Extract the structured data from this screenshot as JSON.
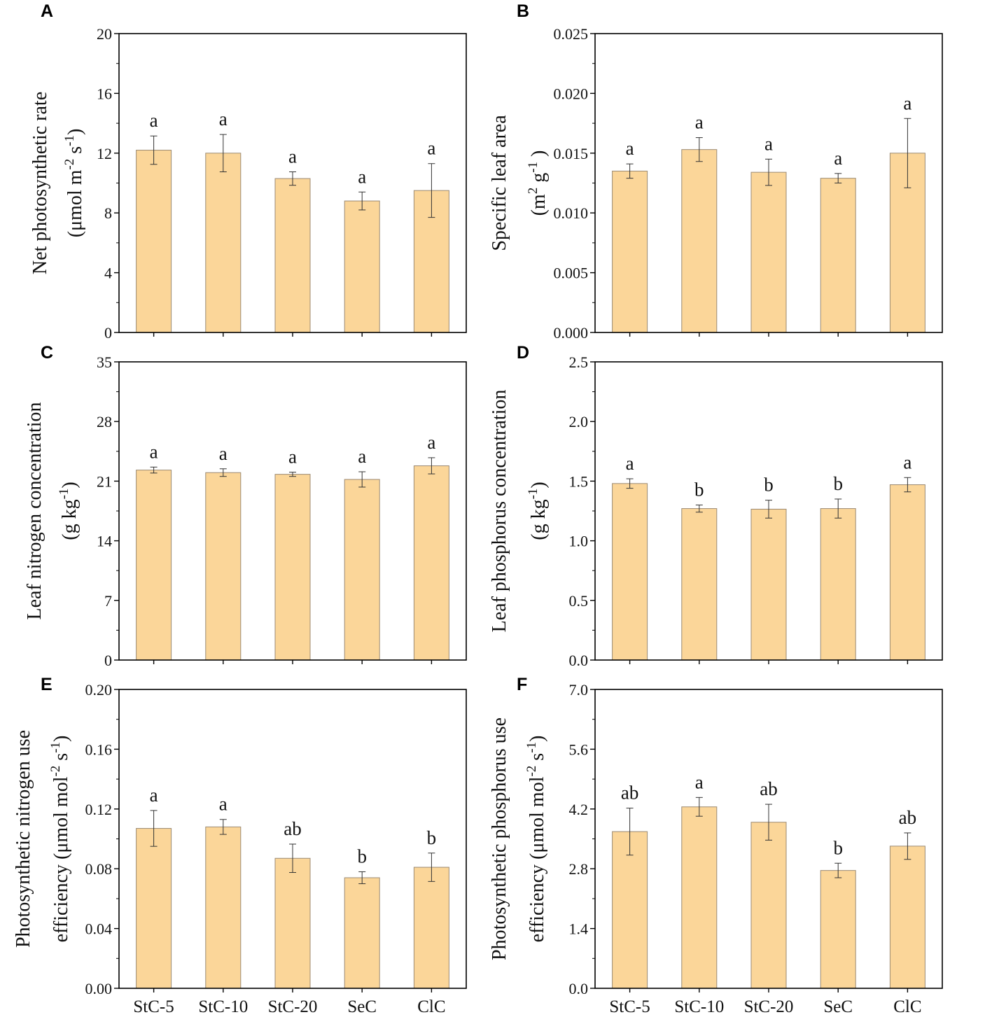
{
  "figure": {
    "bar_color": "#fbd699",
    "bar_edge_color": "#9b8a73",
    "axis_color": "#000000"
  },
  "chart_data": [
    {
      "id": "A",
      "panel_label": "A",
      "type": "bar",
      "categories": [
        "StC-5",
        "StC-10",
        "StC-20",
        "SeC",
        "ClC"
      ],
      "values": [
        12.2,
        12.0,
        10.3,
        8.8,
        9.5
      ],
      "errors": [
        0.95,
        1.25,
        0.45,
        0.6,
        1.8
      ],
      "letters": [
        "a",
        "a",
        "a",
        "a",
        "a"
      ],
      "ylabel_lines": [
        "Net photosynthetic rate",
        "(μmol m-2 s-1)"
      ],
      "ylabel_line2": {
        "pre": "(μmol m",
        "sup1": "-2",
        "mid": " s",
        "sup2": "-1",
        "post": ")"
      },
      "ylim": [
        0,
        20
      ],
      "yticks": [
        0,
        4,
        8,
        12,
        16,
        20
      ],
      "ytick_labels": [
        "0",
        "4",
        "8",
        "12",
        "16",
        "20"
      ],
      "show_xlabels": false
    },
    {
      "id": "B",
      "panel_label": "B",
      "type": "bar",
      "categories": [
        "StC-5",
        "StC-10",
        "StC-20",
        "SeC",
        "ClC"
      ],
      "values": [
        0.0135,
        0.0153,
        0.0134,
        0.0129,
        0.015
      ],
      "errors": [
        0.0006,
        0.001,
        0.0011,
        0.0004,
        0.0029
      ],
      "letters": [
        "a",
        "a",
        "a",
        "a",
        "a"
      ],
      "ylabel_lines": [
        "Specific leaf area",
        "(m2 g-1 )"
      ],
      "ylabel_line2": {
        "pre": "(m",
        "sup1": "2",
        "mid": " g",
        "sup2": "-1",
        "post": " )"
      },
      "ylim": [
        0,
        0.025
      ],
      "yticks": [
        0,
        0.005,
        0.01,
        0.015,
        0.02,
        0.025
      ],
      "ytick_labels": [
        "0.000",
        "0.005",
        "0.010",
        "0.015",
        "0.020",
        "0.025"
      ],
      "show_xlabels": false
    },
    {
      "id": "C",
      "panel_label": "C",
      "type": "bar",
      "categories": [
        "StC-5",
        "StC-10",
        "StC-20",
        "SeC",
        "ClC"
      ],
      "values": [
        22.3,
        22.0,
        21.8,
        21.2,
        22.8
      ],
      "errors": [
        0.35,
        0.45,
        0.25,
        0.9,
        0.95
      ],
      "letters": [
        "a",
        "a",
        "a",
        "a",
        "a"
      ],
      "ylabel_lines": [
        "Leaf nitrogen concentration",
        "(g kg-1)"
      ],
      "ylabel_line2": {
        "pre": "(g kg",
        "sup1": "-1",
        "mid": "",
        "sup2": "",
        "post": ")"
      },
      "ylim": [
        0,
        35
      ],
      "yticks": [
        0,
        7,
        14,
        21,
        28,
        35
      ],
      "ytick_labels": [
        "0",
        "7",
        "14",
        "21",
        "28",
        "35"
      ],
      "show_xlabels": false
    },
    {
      "id": "D",
      "panel_label": "D",
      "type": "bar",
      "categories": [
        "StC-5",
        "StC-10",
        "StC-20",
        "SeC",
        "ClC"
      ],
      "values": [
        1.48,
        1.27,
        1.265,
        1.27,
        1.47
      ],
      "errors": [
        0.04,
        0.03,
        0.075,
        0.08,
        0.06
      ],
      "letters": [
        "a",
        "b",
        "b",
        "b",
        "a"
      ],
      "ylabel_lines": [
        "Leaf phosphorus concentration",
        "(g kg-1)"
      ],
      "ylabel_line2": {
        "pre": "(g kg",
        "sup1": "-1",
        "mid": "",
        "sup2": "",
        "post": ")"
      },
      "ylim": [
        0,
        2.5
      ],
      "yticks": [
        0,
        0.5,
        1.0,
        1.5,
        2.0,
        2.5
      ],
      "ytick_labels": [
        "0.0",
        "0.5",
        "1.0",
        "1.5",
        "2.0",
        "2.5"
      ],
      "show_xlabels": false
    },
    {
      "id": "E",
      "panel_label": "E",
      "type": "bar",
      "categories": [
        "StC-5",
        "StC-10",
        "StC-20",
        "SeC",
        "ClC"
      ],
      "values": [
        0.107,
        0.108,
        0.087,
        0.074,
        0.081
      ],
      "errors": [
        0.012,
        0.005,
        0.0095,
        0.004,
        0.0095
      ],
      "letters": [
        "a",
        "a",
        "ab",
        "b",
        "b"
      ],
      "ylabel_lines": [
        "Photosynthetic nitrogen use",
        "efficiency (μmol mol-2 s-1)"
      ],
      "ylabel_line2": {
        "pre": "efficiency (μmol mol",
        "sup1": "-2",
        "mid": " s",
        "sup2": "-1",
        "post": ")"
      },
      "ylim": [
        0,
        0.2
      ],
      "yticks": [
        0,
        0.04,
        0.08,
        0.12,
        0.16,
        0.2
      ],
      "ytick_labels": [
        "0.00",
        "0.04",
        "0.08",
        "0.12",
        "0.16",
        "0.20"
      ],
      "show_xlabels": true
    },
    {
      "id": "F",
      "panel_label": "F",
      "type": "bar",
      "categories": [
        "StC-5",
        "StC-10",
        "StC-20",
        "SeC",
        "ClC"
      ],
      "values": [
        3.67,
        4.25,
        3.89,
        2.76,
        3.33
      ],
      "errors": [
        0.55,
        0.22,
        0.42,
        0.17,
        0.31
      ],
      "letters": [
        "ab",
        "a",
        "ab",
        "b",
        "ab"
      ],
      "ylabel_lines": [
        "Photosynthetic phosphorus use",
        "efficiency (μmol mol-2 s-1)"
      ],
      "ylabel_line2": {
        "pre": "efficiency (μmol mol",
        "sup1": "-2",
        "mid": " s",
        "sup2": "-1",
        "post": ")"
      },
      "ylim": [
        0,
        7.0
      ],
      "yticks": [
        0,
        1.4,
        2.8,
        4.2,
        5.6,
        7.0
      ],
      "ytick_labels": [
        "0.0",
        "1.4",
        "2.8",
        "4.2",
        "5.6",
        "7.0"
      ],
      "show_xlabels": true
    }
  ]
}
